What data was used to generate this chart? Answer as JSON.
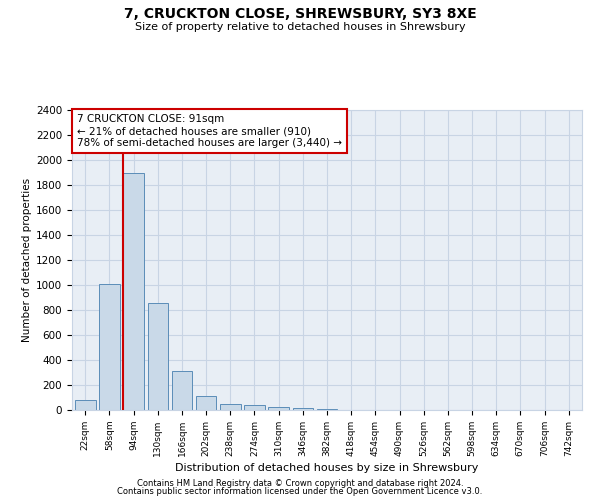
{
  "title": "7, CRUCKTON CLOSE, SHREWSBURY, SY3 8XE",
  "subtitle": "Size of property relative to detached houses in Shrewsbury",
  "xlabel": "Distribution of detached houses by size in Shrewsbury",
  "ylabel": "Number of detached properties",
  "bar_labels": [
    "22sqm",
    "58sqm",
    "94sqm",
    "130sqm",
    "166sqm",
    "202sqm",
    "238sqm",
    "274sqm",
    "310sqm",
    "346sqm",
    "382sqm",
    "418sqm",
    "454sqm",
    "490sqm",
    "526sqm",
    "562sqm",
    "598sqm",
    "634sqm",
    "670sqm",
    "706sqm",
    "742sqm"
  ],
  "bar_values": [
    80,
    1010,
    1900,
    860,
    310,
    110,
    50,
    40,
    25,
    15,
    5,
    0,
    0,
    0,
    0,
    0,
    0,
    0,
    0,
    0,
    0
  ],
  "bar_color": "#c9d9e8",
  "bar_edge_color": "#5b8db8",
  "vline_color": "#cc0000",
  "annotation_line1": "7 CRUCKTON CLOSE: 91sqm",
  "annotation_line2": "← 21% of detached houses are smaller (910)",
  "annotation_line3": "78% of semi-detached houses are larger (3,440) →",
  "annotation_box_color": "#ffffff",
  "annotation_box_edge": "#cc0000",
  "ylim": [
    0,
    2400
  ],
  "yticks": [
    0,
    200,
    400,
    600,
    800,
    1000,
    1200,
    1400,
    1600,
    1800,
    2000,
    2200,
    2400
  ],
  "grid_color": "#c8d4e4",
  "bg_color": "#e8eef5",
  "footer1": "Contains HM Land Registry data © Crown copyright and database right 2024.",
  "footer2": "Contains public sector information licensed under the Open Government Licence v3.0."
}
